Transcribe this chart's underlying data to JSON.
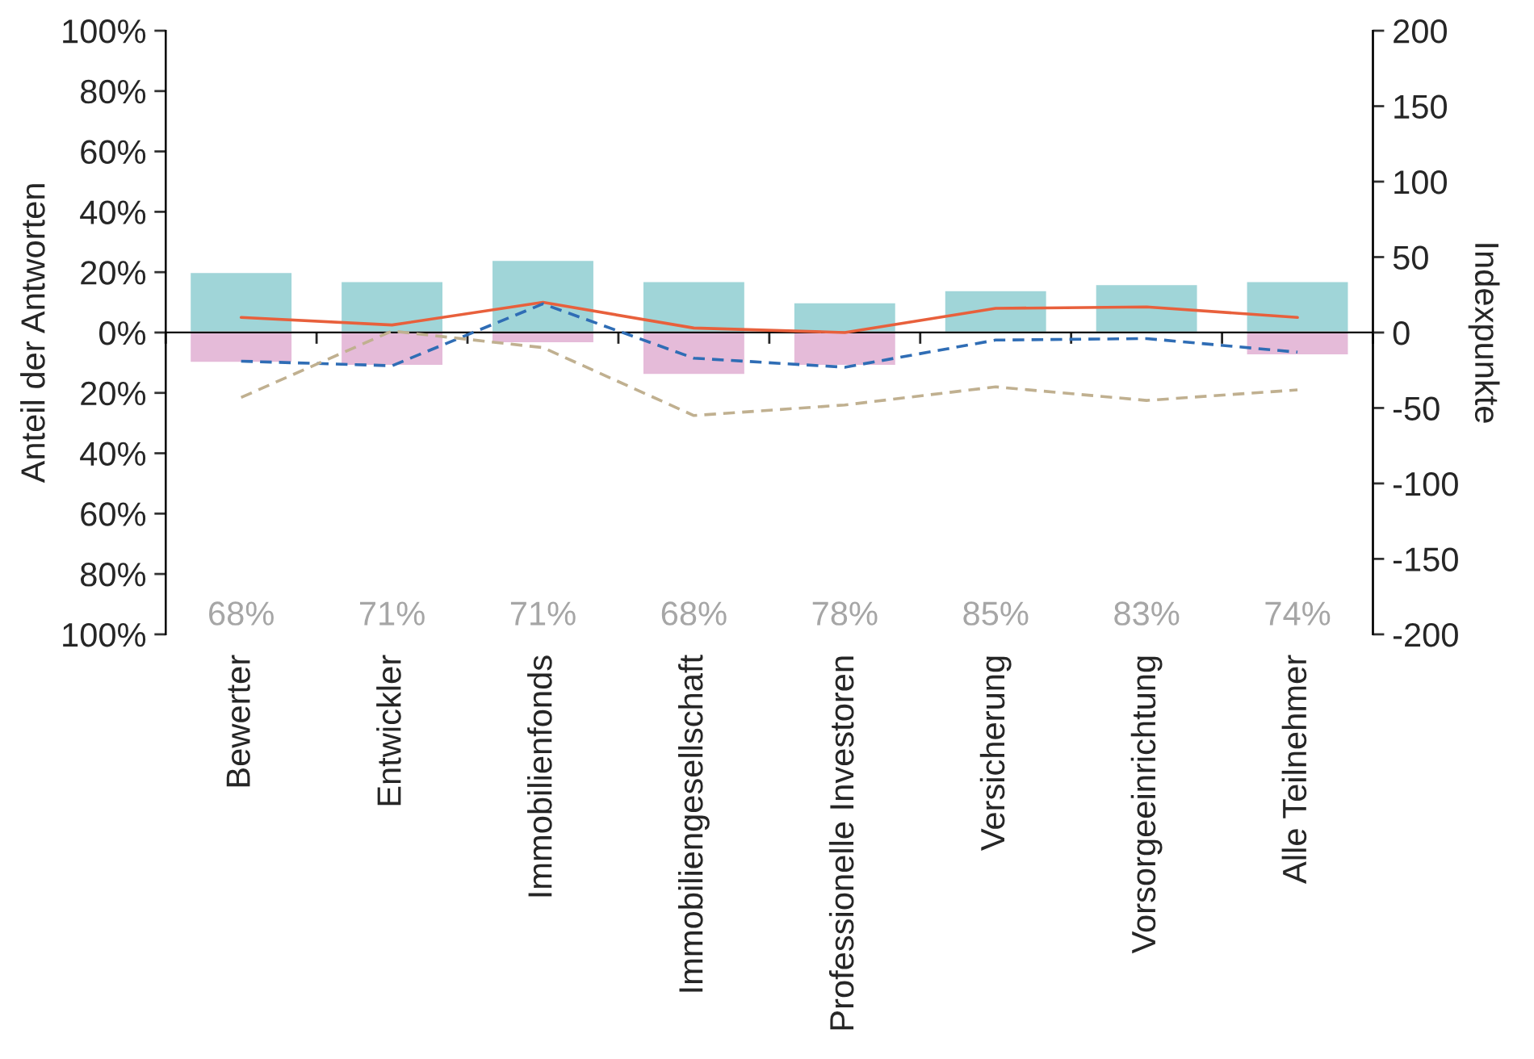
{
  "chart_data": {
    "type": "bar",
    "stacked": true,
    "categories": [
      "Bewerter",
      "Entwickler",
      "Immobilienfonds",
      "Immobiliengesellschaft",
      "Professionelle Investoren",
      "Versicherung",
      "Vorsorgeeinrichtung",
      "Alle Teilnehmer"
    ],
    "series": [
      {
        "color": "#a0d5d8",
        "values": [
          20,
          17,
          24,
          17,
          10,
          14,
          16,
          17
        ]
      },
      {
        "color": "#e5bbd9",
        "values": [
          -10,
          -11,
          -3.5,
          -14,
          -11,
          null,
          null,
          -7.5
        ]
      },
      {
        "type": "line",
        "axis": "y2",
        "color": "#e8603c",
        "line_style": "solid",
        "values": [
          10,
          5,
          20,
          3,
          0,
          16,
          17,
          10
        ]
      },
      {
        "type": "line",
        "axis": "y2",
        "color": "#2f6db5",
        "line_style": "dashed",
        "values": [
          -19,
          -22,
          19,
          -17,
          -23,
          -5,
          -4,
          -13
        ]
      },
      {
        "type": "line",
        "axis": "y2",
        "color": "#c0b090",
        "line_style": "dashed",
        "values": [
          -43,
          1,
          -10,
          -55,
          -48,
          -36,
          -45,
          -38
        ]
      }
    ],
    "ylabel": "Anteil der Antworten",
    "y2label": "Indexpunkte",
    "ylim": [
      -100,
      100
    ],
    "yticks": [
      {
        "value": -100,
        "label": "100%"
      },
      {
        "value": -80,
        "label": "80%"
      },
      {
        "value": -60,
        "label": "60%"
      },
      {
        "value": -40,
        "label": "40%"
      },
      {
        "value": -20,
        "label": "20%"
      },
      {
        "value": 0,
        "label": "0%"
      },
      {
        "value": 20,
        "label": "20%"
      },
      {
        "value": 40,
        "label": "40%"
      },
      {
        "value": 60,
        "label": "60%"
      },
      {
        "value": 80,
        "label": "80%"
      },
      {
        "value": 100,
        "label": "100%"
      }
    ],
    "y2lim": [
      -200,
      200
    ],
    "y2ticks": [
      -200,
      -150,
      -100,
      -50,
      0,
      50,
      100,
      150,
      200
    ],
    "annotations": [
      "68%",
      "71%",
      "71%",
      "68%",
      "78%",
      "85%",
      "83%",
      "74%"
    ],
    "legend": false
  }
}
